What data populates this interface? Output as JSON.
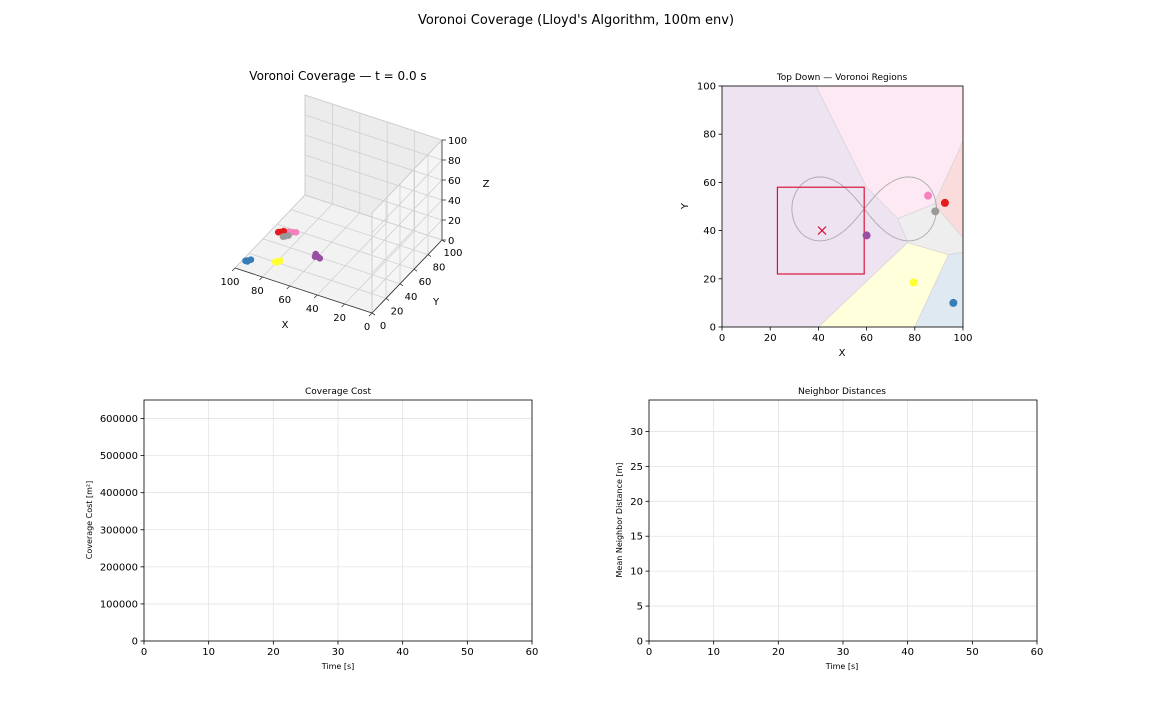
{
  "figure": {
    "suptitle": "Voronoi Coverage (Lloyd's Algorithm, 100m env)"
  },
  "colors": {
    "blue": "#377eb8",
    "red": "#e41a1c",
    "purple": "#984ea3",
    "yellow": "#ffff33",
    "pink": "#f781bf",
    "gray": "#999999",
    "region_purple": "#ede3f1",
    "region_pink": "#fde9f3",
    "region_red": "#fbdcdc",
    "region_gray": "#eeeeee",
    "region_yellow": "#ffffdb",
    "region_blue": "#dfe9f2",
    "target_box": "#dc143c",
    "trajectory": "#aaaaaa"
  },
  "chart_data": [
    {
      "id": "view3d",
      "type": "scatter",
      "title": "Voronoi Coverage — t = 0.0 s",
      "xlabel": "X",
      "ylabel": "Y",
      "zlabel": "Z",
      "xlim": [
        0,
        100
      ],
      "ylim": [
        0,
        100
      ],
      "zlim": [
        0,
        100
      ],
      "xticks": [
        "0",
        "20",
        "40",
        "60",
        "80",
        "100"
      ],
      "yticks": [
        "0",
        "20",
        "40",
        "60",
        "80",
        "100"
      ],
      "zticks": [
        "0",
        "20",
        "40",
        "60",
        "80",
        "100"
      ],
      "series": [
        {
          "color": "purple",
          "points": [
            [
              59,
              38,
              2
            ],
            [
              61,
              39,
              3
            ],
            [
              57,
              37,
              2
            ],
            [
              60,
              36,
              3
            ]
          ]
        },
        {
          "color": "pink",
          "points": [
            [
              86,
              55,
              2
            ],
            [
              88,
              53,
              3
            ],
            [
              84,
              56,
              2
            ]
          ]
        },
        {
          "color": "red",
          "points": [
            [
              93,
              51,
              2
            ],
            [
              91,
              52,
              3
            ],
            [
              94,
              50,
              2
            ]
          ]
        },
        {
          "color": "gray",
          "points": [
            [
              88,
              48,
              2
            ],
            [
              86,
              49,
              3
            ],
            [
              89,
              47,
              2
            ]
          ]
        },
        {
          "color": "yellow",
          "points": [
            [
              79,
              19,
              2
            ],
            [
              77,
              20,
              3
            ],
            [
              80,
              18,
              2
            ],
            [
              78,
              17,
              3
            ]
          ]
        },
        {
          "color": "blue",
          "points": [
            [
              96,
              10,
              2
            ],
            [
              94,
              11,
              3
            ],
            [
              97,
              9,
              2
            ],
            [
              95,
              8,
              3
            ]
          ]
        }
      ]
    },
    {
      "id": "topdown",
      "type": "scatter",
      "title": "Top Down — Voronoi Regions",
      "xlabel": "X",
      "ylabel": "Y",
      "xlim": [
        0,
        100
      ],
      "ylim": [
        0,
        100
      ],
      "xticks": [
        0,
        20,
        40,
        60,
        80,
        100
      ],
      "yticks": [
        0,
        20,
        40,
        60,
        80,
        100
      ],
      "agents": [
        {
          "color": "pink",
          "x": 85.5,
          "y": 54.5
        },
        {
          "color": "red",
          "x": 92.5,
          "y": 51.5
        },
        {
          "color": "gray",
          "x": 88.5,
          "y": 48.0
        },
        {
          "color": "purple",
          "x": 60.0,
          "y": 38.0
        },
        {
          "color": "yellow",
          "x": 79.5,
          "y": 18.5
        },
        {
          "color": "blue",
          "x": 96.0,
          "y": 10.0
        }
      ],
      "regions": [
        {
          "color": "region_purple",
          "polygon": [
            [
              0,
              0
            ],
            [
              40,
              0
            ],
            [
              77,
              35
            ],
            [
              73,
              45
            ],
            [
              60,
              58
            ],
            [
              39,
              100
            ],
            [
              0,
              100
            ]
          ]
        },
        {
          "color": "region_pink",
          "polygon": [
            [
              39,
              100
            ],
            [
              60,
              58
            ],
            [
              73,
              45
            ],
            [
              88,
              51
            ],
            [
              100,
              77
            ],
            [
              100,
              100
            ]
          ]
        },
        {
          "color": "region_red",
          "polygon": [
            [
              88,
              51
            ],
            [
              100,
              77
            ],
            [
              100,
              37
            ]
          ]
        },
        {
          "color": "region_gray",
          "polygon": [
            [
              73,
              45
            ],
            [
              77,
              35
            ],
            [
              94,
              30
            ],
            [
              100,
              31
            ],
            [
              100,
              37
            ],
            [
              88,
              51
            ]
          ]
        },
        {
          "color": "region_yellow",
          "polygon": [
            [
              40,
              0
            ],
            [
              80,
              0
            ],
            [
              94,
              30
            ],
            [
              77,
              35
            ]
          ]
        },
        {
          "color": "region_blue",
          "polygon": [
            [
              80,
              0
            ],
            [
              100,
              0
            ],
            [
              100,
              31
            ],
            [
              94,
              30
            ]
          ]
        }
      ],
      "target": {
        "x": 41.5,
        "y": 40.0
      },
      "target_box": {
        "x0": 23,
        "x1": 59,
        "y0": 22,
        "y1": 58
      }
    },
    {
      "id": "cost",
      "type": "line",
      "title": "Coverage Cost",
      "xlabel": "Time [s]",
      "ylabel": "Coverage Cost [m²]",
      "xlim": [
        0,
        60
      ],
      "ylim": [
        0,
        650000
      ],
      "xticks": [
        0,
        10,
        20,
        30,
        40,
        50,
        60
      ],
      "yticks": [
        0,
        100000,
        200000,
        300000,
        400000,
        500000,
        600000
      ],
      "grid": true,
      "series": []
    },
    {
      "id": "neighbors",
      "type": "line",
      "title": "Neighbor Distances",
      "xlabel": "Time [s]",
      "ylabel": "Mean Neighbor Distance [m]",
      "xlim": [
        0,
        60
      ],
      "ylim": [
        0,
        34.5
      ],
      "xticks": [
        0,
        10,
        20,
        30,
        40,
        50,
        60
      ],
      "yticks": [
        0,
        5,
        10,
        15,
        20,
        25,
        30
      ],
      "grid": true,
      "series": []
    }
  ]
}
